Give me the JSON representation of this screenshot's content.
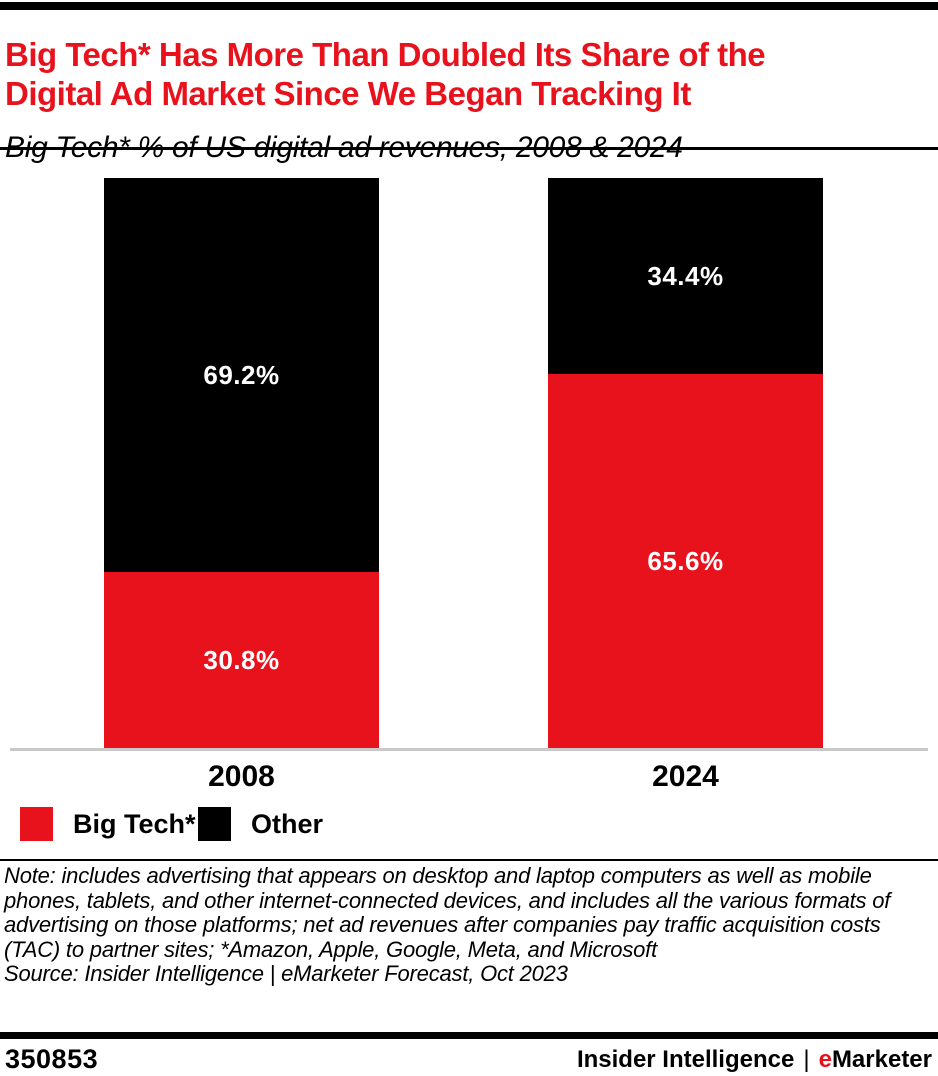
{
  "header": {
    "top_bar_color": "#000000",
    "title_lines": [
      "Big Tech* Has More Than Doubled Its Share of the",
      "Digital Ad Market Since We Began Tracking It"
    ],
    "title_color": "#E8121D",
    "subtitle": "Big Tech* % of US digital ad revenues, 2008 & 2024"
  },
  "chart_data": {
    "type": "bar",
    "stacked": true,
    "categories": [
      "2008",
      "2024"
    ],
    "series": [
      {
        "name": "Big Tech*",
        "color": "#E8121D",
        "values": [
          30.8,
          65.6
        ],
        "position": "bottom"
      },
      {
        "name": "Other",
        "color": "#000000",
        "values": [
          69.2,
          34.4
        ],
        "position": "top"
      }
    ],
    "data_label_format": "percent_one_decimal",
    "data_label_color": "#FFFFFF",
    "title": "Big Tech* Has More Than Doubled Its Share of the Digital Ad Market Since We Began Tracking It",
    "subtitle": "Big Tech* % of US digital ad revenues, 2008 & 2024",
    "xlabel": "",
    "ylabel": "",
    "ylim": [
      0,
      100
    ],
    "unit": "%",
    "grid": false,
    "axis_line_color": "#C9C9C9",
    "legend_position": "bottom-left"
  },
  "note": "Note: includes advertising that appears on desktop and laptop computers as well as mobile phones, tablets, and other internet-connected devices, and includes all the various formats of advertising on those platforms; net ad revenues after companies pay traffic acquisition costs (TAC) to partner sites; *Amazon, Apple, Google, Meta, and Microsoft",
  "source": "Source: Insider Intelligence | eMarketer Forecast, Oct 2023",
  "footer": {
    "chart_id": "350853",
    "brand_left": "Insider Intelligence",
    "separator": "|",
    "brand_e": "e",
    "brand_rest": "Marketer",
    "brand_e_color": "#E8121D"
  }
}
